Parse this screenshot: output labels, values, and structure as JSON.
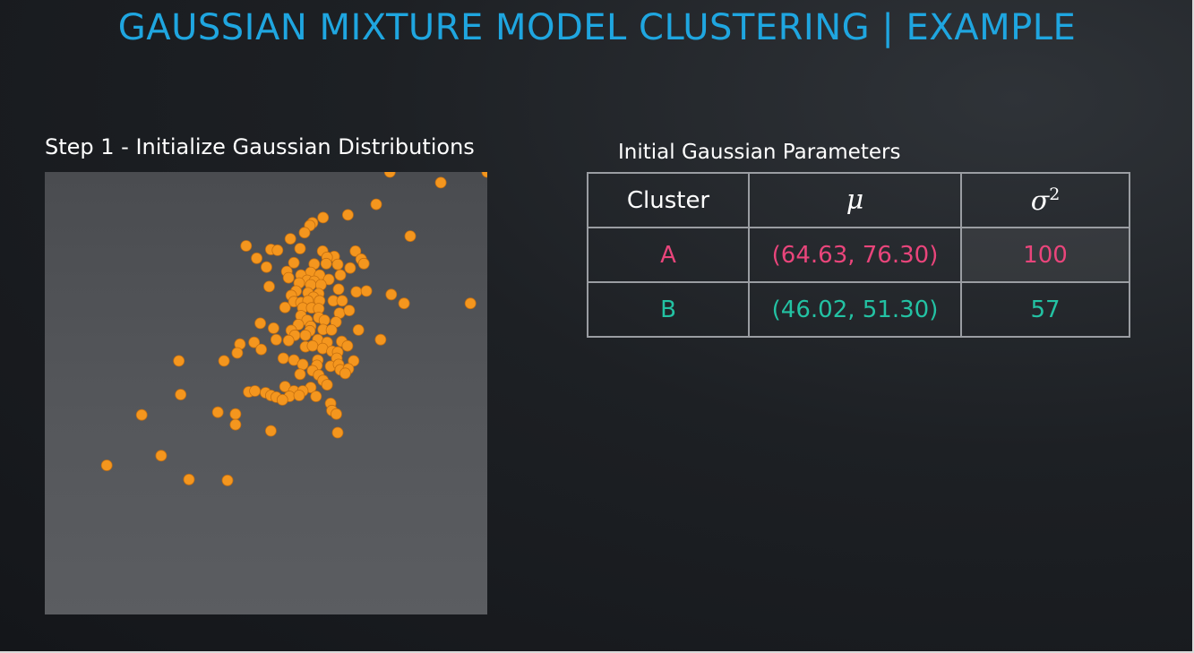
{
  "slide": {
    "title": "GAUSSIAN MIXTURE MODEL CLUSTERING | EXAMPLE",
    "step_label": "Step 1 - Initialize Gaussian Distributions",
    "table_caption": "Initial Gaussian Parameters"
  },
  "table": {
    "headers": [
      "Cluster",
      "μ",
      "σ",
      "2"
    ],
    "rows": [
      {
        "cluster": "A",
        "mu": "(64.63, 76.30)",
        "sigma2": "100"
      },
      {
        "cluster": "B",
        "mu": "(46.02, 51.30)",
        "sigma2": "57"
      }
    ]
  },
  "colors": {
    "title": "#1fa6e0",
    "point": "#f4961e",
    "cluster_a": "#e9457b",
    "cluster_b": "#23c2a3"
  },
  "chart_data": {
    "type": "scatter",
    "title": "",
    "xlabel": "",
    "ylabel": "",
    "xlim": [
      0,
      100
    ],
    "ylim": [
      0,
      100
    ],
    "grid": false,
    "series": [
      {
        "points": [
          [
            78,
            100
          ],
          [
            89.5,
            97.6
          ],
          [
            100,
            100
          ],
          [
            74.9,
            92.7
          ],
          [
            68.5,
            90.3
          ],
          [
            62.9,
            89.7
          ],
          [
            60.5,
            88.5
          ],
          [
            59.9,
            87.9
          ],
          [
            58.7,
            86.3
          ],
          [
            55.5,
            84.9
          ],
          [
            82.6,
            85.5
          ],
          [
            45.5,
            83.3
          ],
          [
            51.1,
            82.5
          ],
          [
            52.6,
            82.3
          ],
          [
            57.7,
            82.7
          ],
          [
            62.8,
            82.1
          ],
          [
            65.4,
            80.9
          ],
          [
            70.2,
            82.1
          ],
          [
            63.8,
            80.7
          ],
          [
            47.9,
            80.5
          ],
          [
            56.3,
            79.5
          ],
          [
            60.9,
            79.2
          ],
          [
            63.6,
            79.3
          ],
          [
            71.5,
            80.3
          ],
          [
            72.1,
            79.3
          ],
          [
            66.2,
            79.1
          ],
          [
            69,
            78.3
          ],
          [
            50.1,
            78.5
          ],
          [
            54.7,
            77.5
          ],
          [
            60.1,
            77.3
          ],
          [
            57.9,
            76.7
          ],
          [
            62.1,
            76.7
          ],
          [
            66.8,
            76.7
          ],
          [
            55.1,
            76.1
          ],
          [
            59.3,
            75.5
          ],
          [
            60.9,
            75.3
          ],
          [
            64.2,
            75.7
          ],
          [
            57.5,
            74.9
          ],
          [
            60.1,
            74.5
          ],
          [
            62.4,
            74.5
          ],
          [
            66.4,
            73.5
          ],
          [
            50.7,
            74.1
          ],
          [
            56.8,
            73.1
          ],
          [
            59.5,
            72.7
          ],
          [
            61.9,
            72.5
          ],
          [
            70.4,
            72.9
          ],
          [
            72.7,
            73.1
          ],
          [
            78.3,
            72.3
          ],
          [
            55.7,
            72.1
          ],
          [
            60.7,
            71.7
          ],
          [
            56.3,
            70.7
          ],
          [
            57.9,
            70.5
          ],
          [
            59.5,
            70.9
          ],
          [
            62.1,
            70.9
          ],
          [
            65.2,
            70.9
          ],
          [
            67.2,
            70.9
          ],
          [
            81.2,
            70.3
          ],
          [
            96.2,
            70.3
          ],
          [
            54.3,
            69.4
          ],
          [
            58.3,
            69.3
          ],
          [
            60.3,
            69.3
          ],
          [
            61.9,
            69.1
          ],
          [
            66.6,
            68.1
          ],
          [
            68.8,
            68.7
          ],
          [
            57.9,
            67.5
          ],
          [
            61.9,
            67.1
          ],
          [
            59.3,
            66.5
          ],
          [
            63.2,
            66.5
          ],
          [
            65.8,
            66.1
          ],
          [
            48.7,
            65.8
          ],
          [
            57.3,
            65.5
          ],
          [
            60.1,
            65.1
          ],
          [
            51.7,
            64.7
          ],
          [
            55.7,
            64.2
          ],
          [
            59.9,
            64.1
          ],
          [
            62.9,
            64.4
          ],
          [
            64.8,
            64.3
          ],
          [
            70.9,
            64.3
          ],
          [
            56.5,
            63.1
          ],
          [
            58.9,
            63.1
          ],
          [
            61.7,
            62.1
          ],
          [
            44.1,
            61.1
          ],
          [
            47.3,
            61.5
          ],
          [
            52.3,
            62.1
          ],
          [
            55.1,
            61.9
          ],
          [
            63.8,
            61.5
          ],
          [
            67.1,
            61.7
          ],
          [
            75.9,
            62.1
          ],
          [
            48.9,
            59.9
          ],
          [
            58.9,
            60.5
          ],
          [
            60.5,
            60.7
          ],
          [
            62.8,
            60.1
          ],
          [
            64.9,
            59.5
          ],
          [
            66.2,
            59.3
          ],
          [
            68.4,
            60.7
          ],
          [
            43.5,
            59.1
          ],
          [
            53.9,
            57.9
          ],
          [
            56.3,
            57.5
          ],
          [
            61.7,
            57.5
          ],
          [
            66,
            57.9
          ],
          [
            69.8,
            57.3
          ],
          [
            40.5,
            57.3
          ],
          [
            30.3,
            57.3
          ],
          [
            58.3,
            56.5
          ],
          [
            61.5,
            56.3
          ],
          [
            64.6,
            56.1
          ],
          [
            66.4,
            56.5
          ],
          [
            60.5,
            55.1
          ],
          [
            66.8,
            55.3
          ],
          [
            68.6,
            55.5
          ],
          [
            57.7,
            54.3
          ],
          [
            61.9,
            54.1
          ],
          [
            67.9,
            54.5
          ],
          [
            62.9,
            52.9
          ],
          [
            54.3,
            51.5
          ],
          [
            60.1,
            51.3
          ],
          [
            56.3,
            50.5
          ],
          [
            58.3,
            50.5
          ],
          [
            63.8,
            51.9
          ],
          [
            46.1,
            50.3
          ],
          [
            47.5,
            50.5
          ],
          [
            49.9,
            50.1
          ],
          [
            51.1,
            49.5
          ],
          [
            52.3,
            49.1
          ],
          [
            55.3,
            49.3
          ],
          [
            57.5,
            49.5
          ],
          [
            61.3,
            49.3
          ],
          [
            30.7,
            49.7
          ],
          [
            53.7,
            48.5
          ],
          [
            64.6,
            47.7
          ],
          [
            64.9,
            46.1
          ],
          [
            39.1,
            45.7
          ],
          [
            43.1,
            45.3
          ],
          [
            65.9,
            45.3
          ],
          [
            21.9,
            45.1
          ],
          [
            43.1,
            42.9
          ],
          [
            51.1,
            41.5
          ],
          [
            66.2,
            41.1
          ],
          [
            26.3,
            35.9
          ],
          [
            14,
            33.7
          ],
          [
            32.6,
            30.5
          ],
          [
            41.3,
            30.3
          ]
        ]
      }
    ]
  }
}
